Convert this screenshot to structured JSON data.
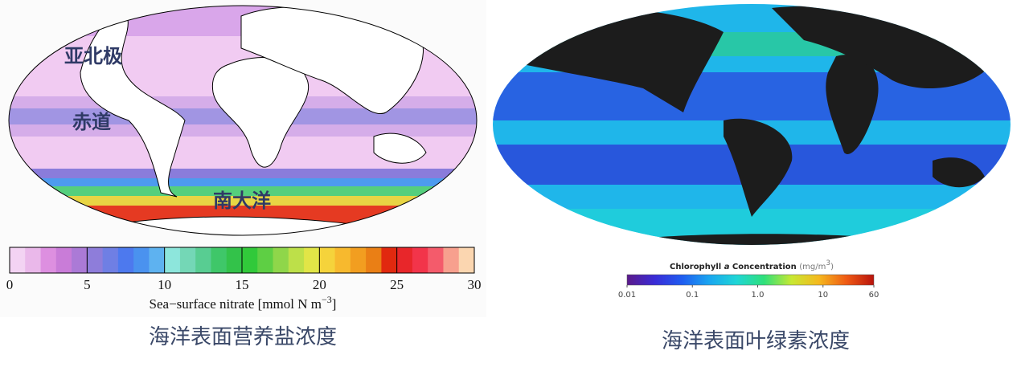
{
  "left_map": {
    "labels": [
      "亚北极",
      "赤道",
      "南大洋"
    ],
    "colorbar": {
      "colors": [
        "#f3d3f3",
        "#eab8ea",
        "#dd8fe0",
        "#c97cd8",
        "#ab7ad6",
        "#8e7dda",
        "#6f7fe4",
        "#4d79ee",
        "#4a92ef",
        "#5eb2f0",
        "#8de6dc",
        "#74d7b6",
        "#58cd92",
        "#3fc769",
        "#33c24a",
        "#31c93a",
        "#5ecf44",
        "#8fd64a",
        "#bde049",
        "#e1e547",
        "#f5d33b",
        "#f7b92e",
        "#f29e20",
        "#ea7f15",
        "#e1290f",
        "#e8262a",
        "#f2344a",
        "#f45b6b",
        "#f7a08e",
        "#fbd6b0"
      ],
      "lim": [
        0,
        30
      ],
      "ticks": [
        0,
        5,
        10,
        15,
        20,
        25,
        30
      ],
      "label": [
        "Sea−surface nitrate [mmol N m",
        "−3",
        "]"
      ]
    },
    "caption": "海洋表面营养盐浓度"
  },
  "right_map": {
    "colorbar": {
      "colors": [
        "#5b1a8a",
        "#3a2bd6",
        "#1f5cf0",
        "#1aa6f0",
        "#1fd6d6",
        "#2fe07a",
        "#c8e832",
        "#f5b81e",
        "#ef5a14",
        "#b8130c"
      ],
      "lim": [
        0.01,
        60
      ],
      "log": true,
      "ticks": [
        0.01,
        0.1,
        {
          "value": 1,
          "label": "1.0"
        },
        10,
        60
      ],
      "title": [
        "Chlorophyll ",
        "a",
        " Concentration ",
        "(mg/m",
        "3",
        ")"
      ]
    },
    "caption": "海洋表面叶绿素浓度"
  }
}
